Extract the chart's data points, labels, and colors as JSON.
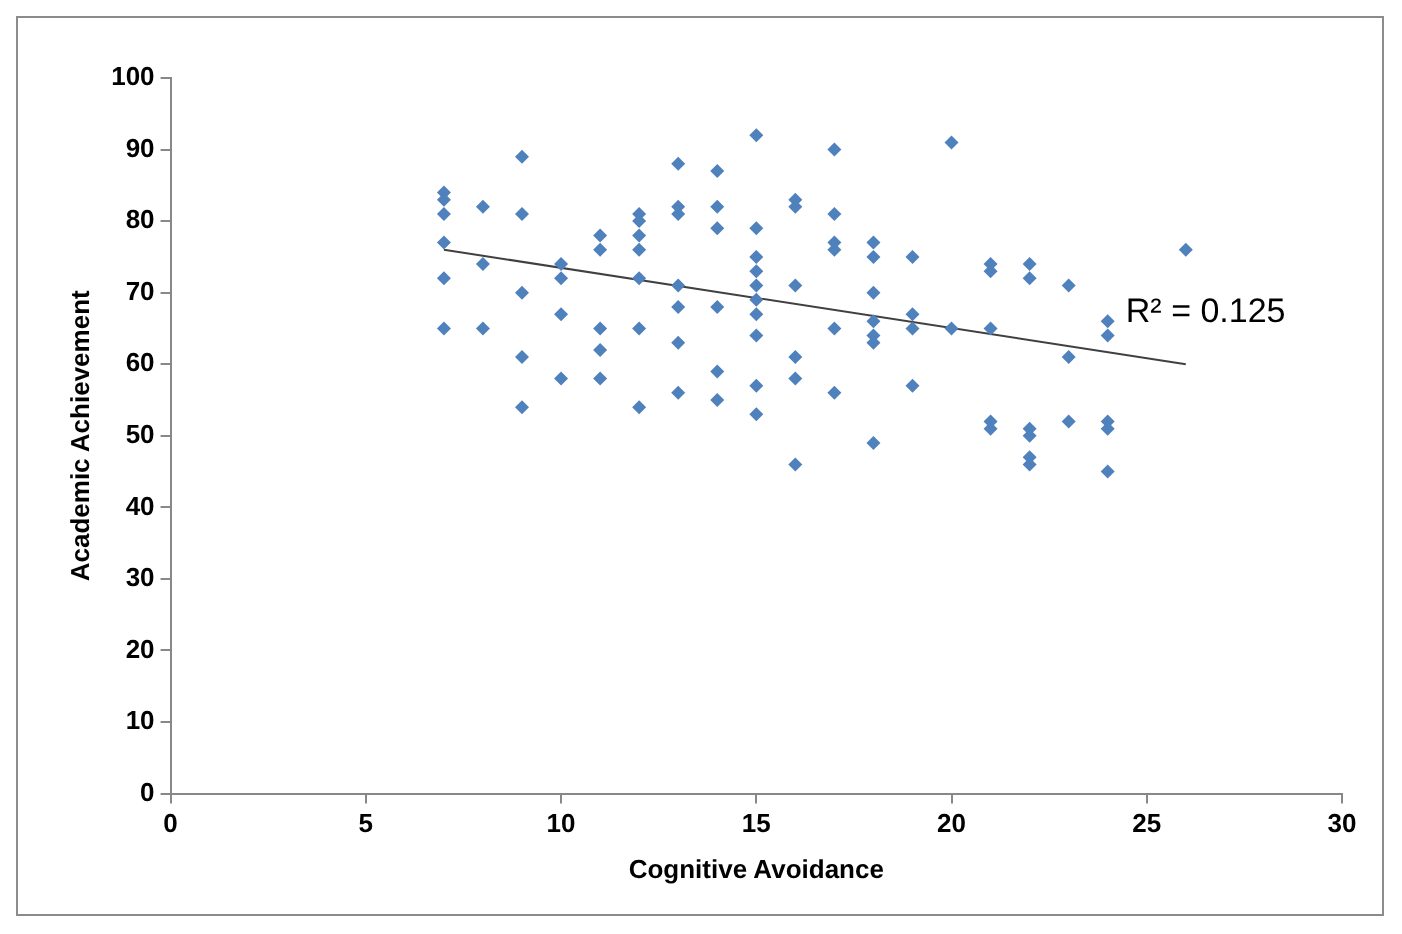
{
  "chart_data": {
    "type": "scatter",
    "xlabel": "Cognitive Avoidance",
    "ylabel": "Academic Achievement",
    "xlim": [
      0,
      30
    ],
    "xticks": [
      0,
      5,
      10,
      15,
      20,
      25,
      30
    ],
    "ylim": [
      0,
      100
    ],
    "yticks": [
      0,
      10,
      20,
      30,
      40,
      50,
      60,
      70,
      80,
      90,
      100
    ],
    "grid": false,
    "legend": false,
    "marker": "diamond",
    "series": [
      {
        "type": "scatter",
        "color": "#4f81bd",
        "x": [
          7,
          7,
          7,
          7,
          7,
          7,
          8,
          8,
          8,
          9,
          9,
          9,
          9,
          9,
          10,
          10,
          10,
          10,
          11,
          11,
          11,
          11,
          11,
          12,
          12,
          12,
          12,
          12,
          12,
          12,
          13,
          13,
          13,
          13,
          13,
          13,
          13,
          14,
          14,
          14,
          14,
          14,
          14,
          15,
          15,
          15,
          15,
          15,
          15,
          15,
          15,
          15,
          15,
          16,
          16,
          16,
          16,
          16,
          16,
          17,
          17,
          17,
          17,
          17,
          17,
          18,
          18,
          18,
          18,
          18,
          18,
          18,
          19,
          19,
          19,
          19,
          20,
          20,
          21,
          21,
          21,
          21,
          21,
          22,
          22,
          22,
          22,
          22,
          22,
          23,
          23,
          23,
          24,
          24,
          24,
          24,
          24,
          26
        ],
        "values": [
          84,
          83,
          81,
          77,
          72,
          65,
          82,
          74,
          65,
          89,
          81,
          70,
          61,
          54,
          74,
          72,
          67,
          58,
          78,
          76,
          65,
          62,
          58,
          81,
          80,
          78,
          76,
          72,
          65,
          54,
          88,
          82,
          81,
          71,
          68,
          63,
          56,
          87,
          82,
          79,
          68,
          59,
          55,
          92,
          79,
          75,
          73,
          71,
          69,
          67,
          64,
          57,
          53,
          83,
          82,
          71,
          61,
          58,
          46,
          90,
          81,
          77,
          76,
          65,
          56,
          77,
          75,
          70,
          66,
          64,
          63,
          49,
          75,
          67,
          65,
          57,
          91,
          65,
          74,
          73,
          65,
          52,
          51,
          74,
          72,
          51,
          50,
          47,
          46,
          71,
          61,
          52,
          66,
          64,
          52,
          51,
          45,
          76
        ]
      },
      {
        "type": "line",
        "color": "#404040",
        "x": [
          7,
          26
        ],
        "values": [
          76,
          60
        ],
        "marker": "none"
      }
    ],
    "annotations": [
      "R² = 0.125"
    ]
  }
}
